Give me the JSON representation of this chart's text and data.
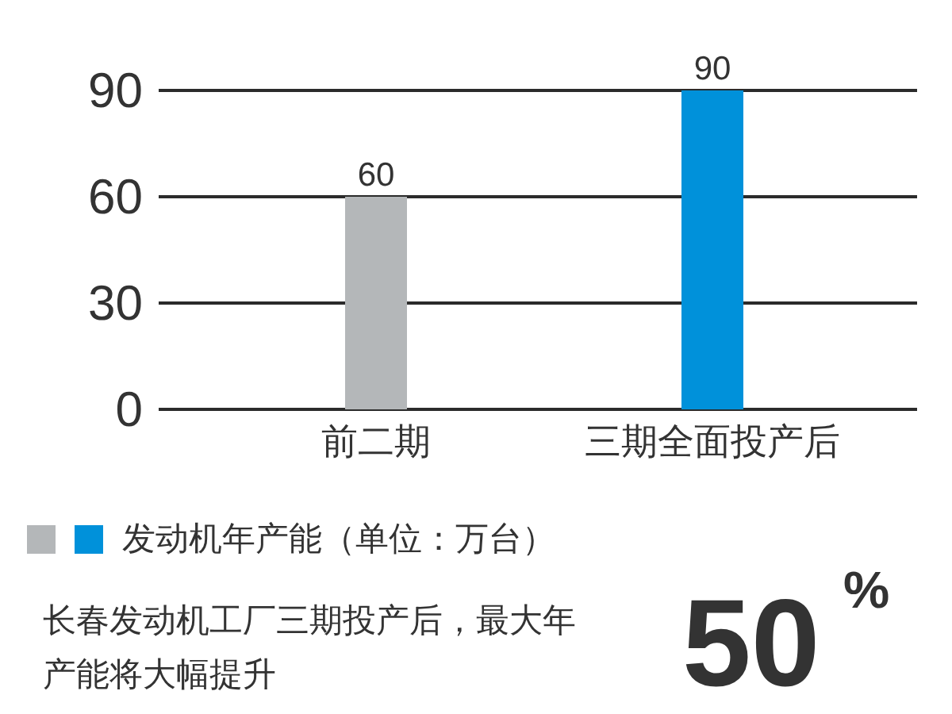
{
  "chart_data": {
    "type": "bar",
    "categories": [
      "前二期",
      "三期全面投产后"
    ],
    "series": [
      {
        "name": "发动机年产能（单位：万台）",
        "colors": [
          "#b4b7b9",
          "#0091da"
        ],
        "values": [
          60,
          90
        ]
      }
    ],
    "ylim": [
      0,
      90
    ],
    "yticks": [
      0,
      30,
      60,
      90
    ],
    "grid": "y",
    "data_labels": true,
    "legend": "bottom left",
    "annotations": [
      "长春发动机工厂三期投产后，最大年产能将大幅提升",
      "50$^{%}$"
    ]
  }
}
